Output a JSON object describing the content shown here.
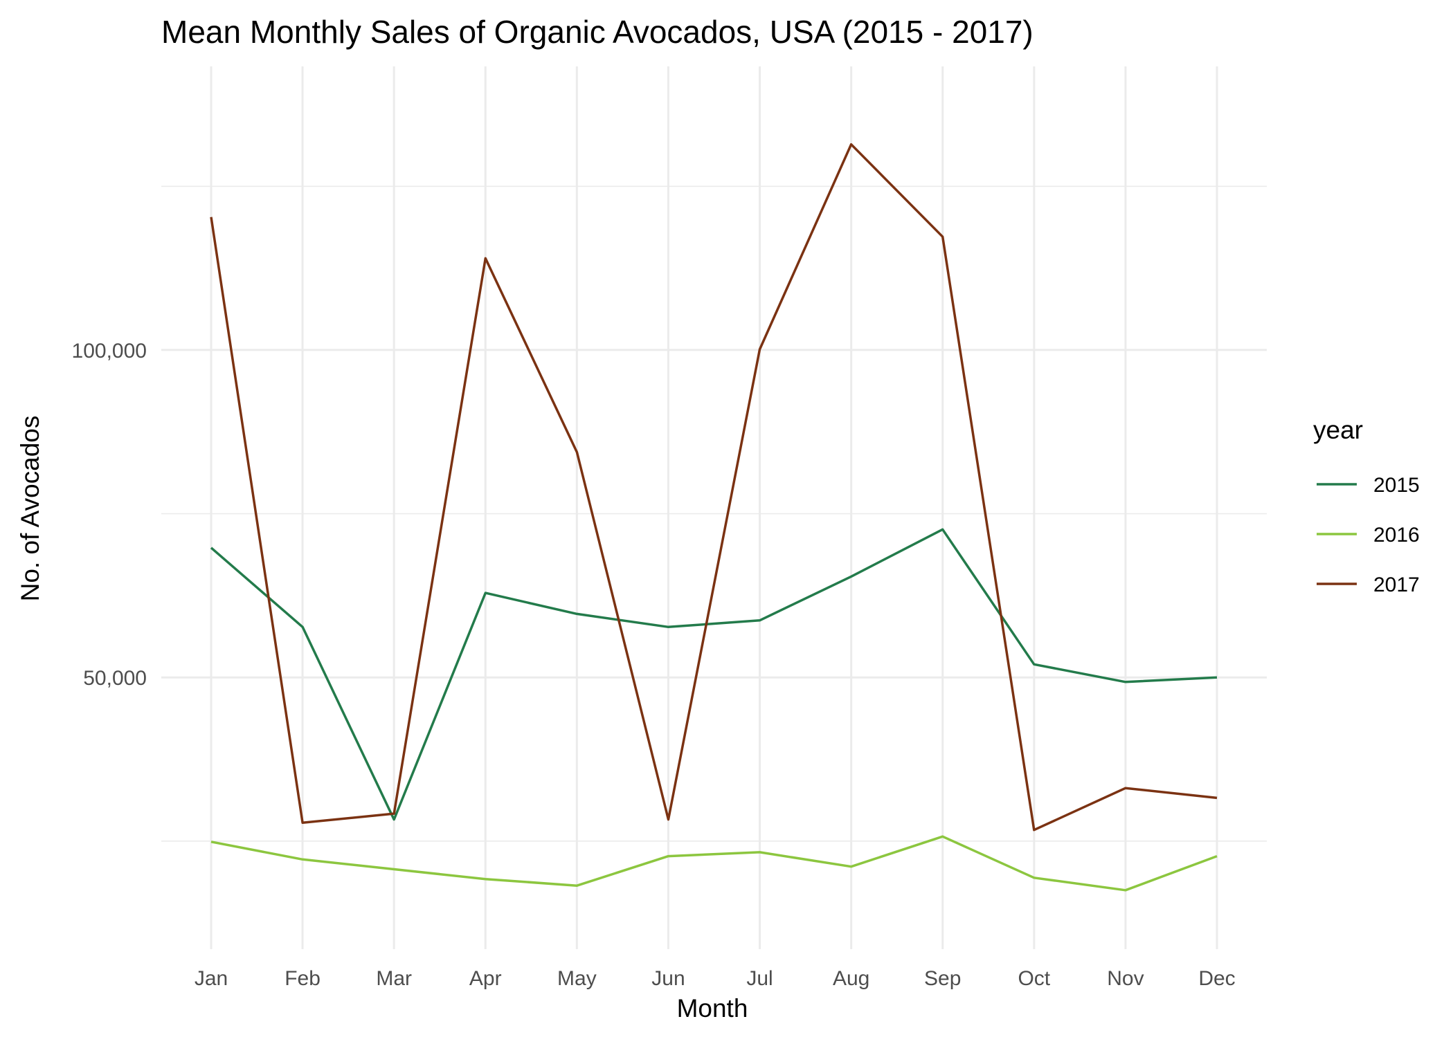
{
  "chart_data": {
    "type": "line",
    "title": "Mean Monthly Sales of Organic Avocados, USA (2015 - 2017)",
    "xlabel": "Month",
    "ylabel": "No. of Avocados",
    "categories": [
      "Jan",
      "Feb",
      "Mar",
      "Apr",
      "May",
      "Jun",
      "Jul",
      "Aug",
      "Sep",
      "Oct",
      "Nov",
      "Dec"
    ],
    "ylim": [
      8500,
      145000
    ],
    "y_ticks": [
      50000,
      100000
    ],
    "y_tick_labels": [
      "50,000",
      "100,000"
    ],
    "y_minor_ticks": [
      25000,
      75000,
      125000
    ],
    "grid": true,
    "legend": {
      "title": "year",
      "position": "right"
    },
    "series": [
      {
        "name": "2015",
        "color": "#237b4b",
        "values": [
          69800,
          57700,
          28300,
          62900,
          59700,
          57700,
          58700,
          65400,
          72600,
          52000,
          49300,
          50000
        ]
      },
      {
        "name": "2016",
        "color": "#8cc63f",
        "values": [
          24900,
          22200,
          20700,
          19200,
          18200,
          22700,
          23300,
          21100,
          25700,
          19400,
          17500,
          22700
        ]
      },
      {
        "name": "2017",
        "color": "#7b3212",
        "values": [
          120300,
          27800,
          29200,
          114000,
          84400,
          28300,
          100100,
          131400,
          117300,
          26700,
          33100,
          31600
        ]
      }
    ]
  }
}
